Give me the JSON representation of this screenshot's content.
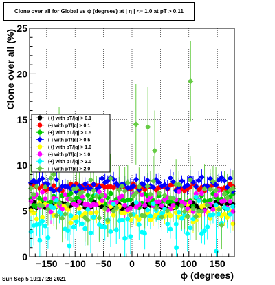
{
  "title": "Clone  over all for Global vs ϕ (degrees) at |  η | <= 1.0 at pT > 0.11",
  "timestamp": "Sun Sep  5 10:17:28 2021",
  "chart_data": {
    "type": "scatter",
    "xlabel": "ϕ (degrees)",
    "ylabel": "Clone  over all (%)",
    "xlim": [
      -180,
      180
    ],
    "ylim": [
      0,
      25
    ],
    "x_ticks": [
      -150,
      -100,
      -50,
      0,
      50,
      100,
      150
    ],
    "x_tick_labels": [
      "−150",
      "−100",
      "−50",
      "0",
      "50",
      "100",
      "150"
    ],
    "y_ticks": [
      0,
      5,
      10,
      15,
      20,
      25
    ],
    "grid": true,
    "legend_position": "left",
    "series": [
      {
        "name": "(+) with pT/|q| > 0.1",
        "color": "#000000",
        "marker": "circle",
        "base": 5.6,
        "spread": 0.35,
        "err": 0.5
      },
      {
        "name": "(-) with pT/|q| > 0.1",
        "color": "#ff0000",
        "marker": "circle",
        "base": 7.6,
        "spread": 0.35,
        "err": 0.5
      },
      {
        "name": "(+) with pT/|q| > 0.5",
        "color": "#00cc00",
        "marker": "circle",
        "base": 6.2,
        "spread": 0.7,
        "err": 0.8
      },
      {
        "name": "(-) with pT/|q| > 0.5",
        "color": "#0000ff",
        "marker": "diamond",
        "base": 8.0,
        "spread": 0.7,
        "err": 0.8
      },
      {
        "name": "(+) with pT/|q| > 1.0",
        "color": "#ffff00",
        "marker": "circle",
        "base": 4.8,
        "spread": 1.0,
        "err": 1.0
      },
      {
        "name": "(-) with pT/|q| > 1.0",
        "color": "#ff00ff",
        "marker": "circle",
        "base": 6.0,
        "spread": 1.0,
        "err": 1.0
      },
      {
        "name": "(+) with pT/|q| > 2.0",
        "color": "#00ffff",
        "marker": "circle",
        "base": 4.2,
        "spread": 2.0,
        "err": 1.6
      },
      {
        "name": "(-) with pT/|q| > 2.0",
        "color": "#66cc44",
        "marker": "diamond",
        "base": 6.2,
        "spread": 2.2,
        "err": 2.0
      }
    ],
    "n_points": 72,
    "outliers": [
      {
        "series": 7,
        "x": 103,
        "y": 19.2
      },
      {
        "series": 7,
        "x": 7,
        "y": 14.5
      },
      {
        "series": 7,
        "x": 28,
        "y": 14.2
      },
      {
        "series": 7,
        "x": -128,
        "y": 12.0
      },
      {
        "series": 7,
        "x": 40,
        "y": 11.6
      },
      {
        "series": 6,
        "x": -162,
        "y": 1.8
      },
      {
        "series": 6,
        "x": -110,
        "y": 1.2
      },
      {
        "series": 6,
        "x": 78,
        "y": 1.0
      },
      {
        "series": 6,
        "x": 148,
        "y": 0.6
      }
    ]
  }
}
